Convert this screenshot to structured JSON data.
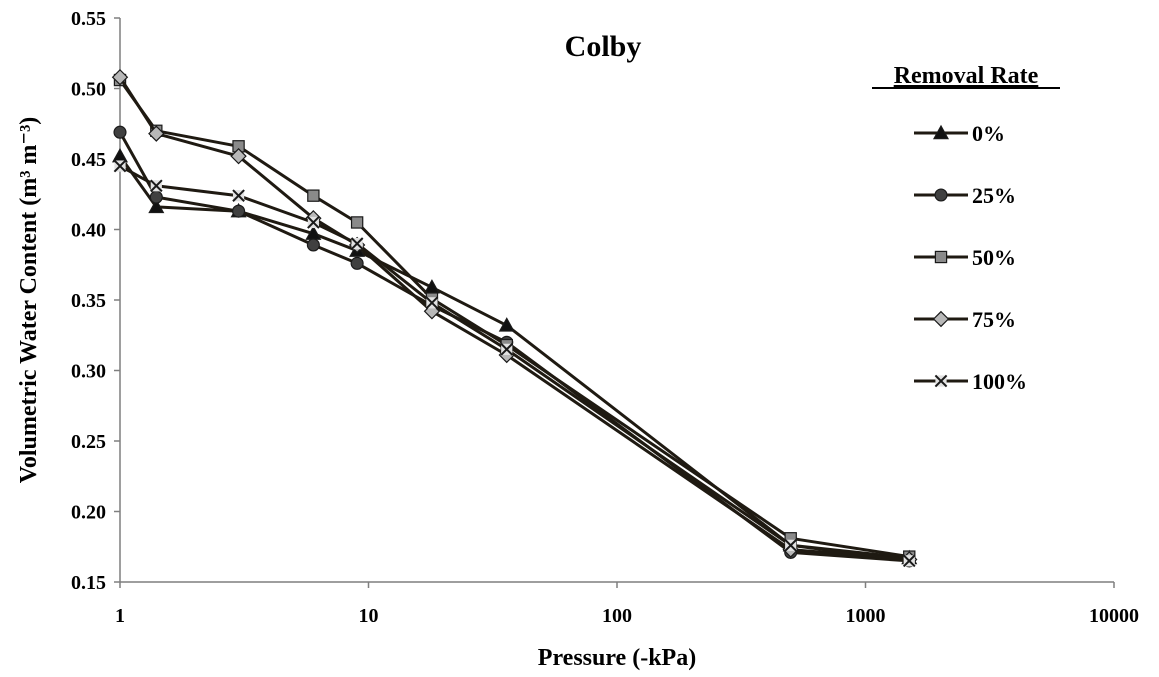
{
  "chart_data": {
    "type": "line",
    "title": "Colby",
    "xlabel": "Pressure (-kPa)",
    "ylabel": "Volumetric Water Content (m³ m⁻³)",
    "x_scale": "log",
    "xlim": [
      1,
      10000
    ],
    "ylim": [
      0.15,
      0.55
    ],
    "x_ticks": [
      1,
      10,
      100,
      1000,
      10000
    ],
    "x_tick_labels": [
      "1",
      "10",
      "100",
      "1000",
      "10000"
    ],
    "y_ticks": [
      0.15,
      0.2,
      0.25,
      0.3,
      0.35,
      0.4,
      0.45,
      0.5,
      0.55
    ],
    "y_tick_labels": [
      "0.15",
      "0.20",
      "0.25",
      "0.30",
      "0.35",
      "0.40",
      "0.45",
      "0.50",
      "0.55"
    ],
    "grid": false,
    "legend_title": "Removal Rate",
    "legend_position": "right",
    "line_color": "#1f1a12",
    "series": [
      {
        "name": "0%",
        "marker": "triangle",
        "fill": "#111111",
        "x": [
          1,
          1.4,
          3,
          6,
          9,
          18,
          36,
          500,
          1500
        ],
        "y": [
          0.452,
          0.416,
          0.413,
          0.397,
          0.385,
          0.359,
          0.332,
          0.176,
          0.167
        ]
      },
      {
        "name": "25%",
        "marker": "circle",
        "fill": "#404040",
        "x": [
          1,
          1.4,
          3,
          6,
          9,
          18,
          36,
          500,
          1500
        ],
        "y": [
          0.469,
          0.423,
          0.413,
          0.389,
          0.376,
          0.346,
          0.32,
          0.171,
          0.165
        ]
      },
      {
        "name": "50%",
        "marker": "square",
        "fill": "#8a8a8a",
        "x": [
          1,
          1.4,
          3,
          6,
          9,
          18,
          36,
          500,
          1500
        ],
        "y": [
          0.506,
          0.47,
          0.459,
          0.424,
          0.405,
          0.351,
          0.318,
          0.181,
          0.168
        ]
      },
      {
        "name": "75%",
        "marker": "diamond",
        "fill": "#b8b8b8",
        "x": [
          1,
          1.4,
          3,
          6,
          9,
          18,
          36,
          500,
          1500
        ],
        "y": [
          0.508,
          0.468,
          0.452,
          0.408,
          0.389,
          0.342,
          0.311,
          0.173,
          0.166
        ]
      },
      {
        "name": "100%",
        "marker": "x",
        "fill": "#e2e2e2",
        "x": [
          1,
          1.4,
          3,
          6,
          9,
          18,
          36,
          500,
          1500
        ],
        "y": [
          0.445,
          0.431,
          0.424,
          0.405,
          0.39,
          0.348,
          0.315,
          0.176,
          0.165
        ]
      }
    ]
  }
}
